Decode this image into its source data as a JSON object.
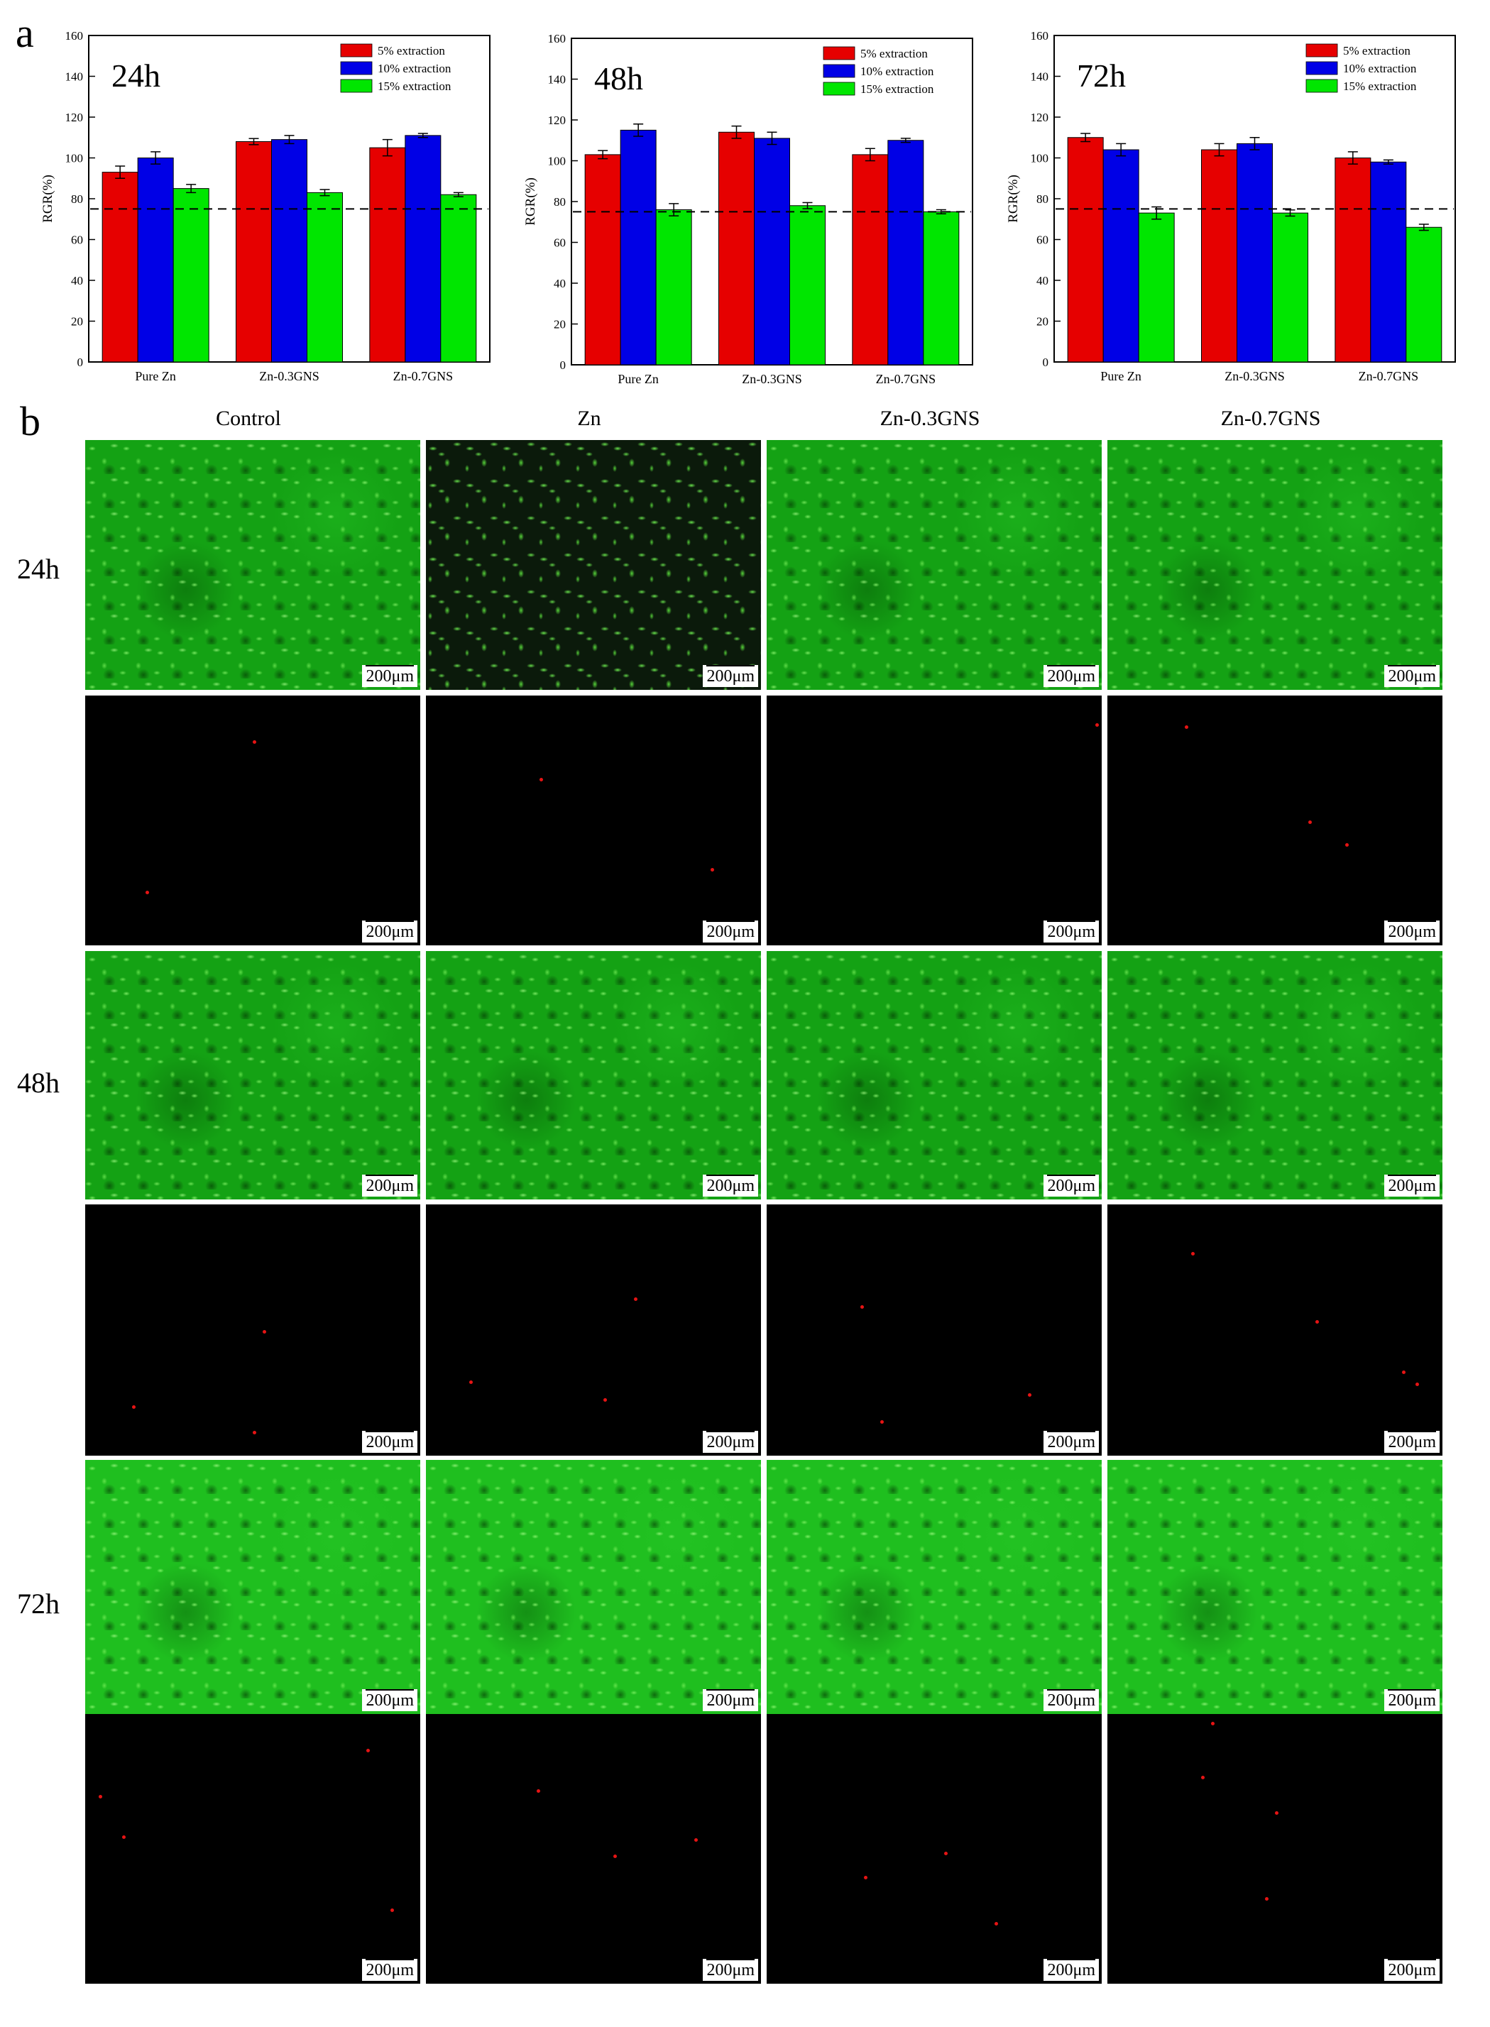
{
  "panel_labels": {
    "a": "a",
    "b": "b"
  },
  "chart_data": [
    {
      "type": "bar",
      "annotation": "24h",
      "categories": [
        "Pure Zn",
        "Zn-0.3GNS",
        "Zn-0.7GNS"
      ],
      "series": [
        {
          "name": "5%  extraction",
          "color": "#e60000",
          "values": [
            93,
            108,
            105
          ],
          "errors": [
            3,
            1.5,
            4
          ]
        },
        {
          "name": "10% extraction",
          "color": "#0000e6",
          "values": [
            100,
            109,
            111
          ],
          "errors": [
            3,
            2,
            1
          ]
        },
        {
          "name": "15% extraction",
          "color": "#00e600",
          "values": [
            85,
            83,
            82
          ],
          "errors": [
            2,
            1.5,
            1
          ]
        }
      ],
      "ylabel": "RGR(%)",
      "ylim": [
        0,
        160
      ],
      "yticks": [
        0,
        20,
        40,
        60,
        80,
        100,
        120,
        140,
        160
      ],
      "reference_line": 75
    },
    {
      "type": "bar",
      "annotation": "48h",
      "categories": [
        "Pure Zn",
        "Zn-0.3GNS",
        "Zn-0.7GNS"
      ],
      "series": [
        {
          "name": "5%  extraction",
          "color": "#e60000",
          "values": [
            103,
            114,
            103
          ],
          "errors": [
            2,
            3,
            3
          ]
        },
        {
          "name": "10% extraction",
          "color": "#0000e6",
          "values": [
            115,
            111,
            110
          ],
          "errors": [
            3,
            3,
            1
          ]
        },
        {
          "name": "15% extraction",
          "color": "#00e600",
          "values": [
            76,
            78,
            75
          ],
          "errors": [
            3,
            1.5,
            1
          ]
        }
      ],
      "ylabel": "RGR(%)",
      "ylim": [
        0,
        160
      ],
      "yticks": [
        0,
        20,
        40,
        60,
        80,
        100,
        120,
        140,
        160
      ],
      "reference_line": 75
    },
    {
      "type": "bar",
      "annotation": "72h",
      "categories": [
        "Pure Zn",
        "Zn-0.3GNS",
        "Zn-0.7GNS"
      ],
      "series": [
        {
          "name": "5%  extraction",
          "color": "#e60000",
          "values": [
            110,
            104,
            100
          ],
          "errors": [
            2,
            3,
            3
          ]
        },
        {
          "name": "10% extraction",
          "color": "#0000e6",
          "values": [
            104,
            107,
            98
          ],
          "errors": [
            3,
            3,
            1
          ]
        },
        {
          "name": "15% extraction",
          "color": "#00e600",
          "values": [
            73,
            73,
            66
          ],
          "errors": [
            3,
            1.5,
            1.5
          ]
        }
      ],
      "ylabel": "RGR(%)",
      "ylim": [
        0,
        160
      ],
      "yticks": [
        0,
        20,
        40,
        60,
        80,
        100,
        120,
        140,
        160
      ],
      "reference_line": 75
    }
  ],
  "micrographs": {
    "columns": [
      "Control",
      "Zn",
      "Zn-0.3GNS",
      "Zn-0.7GNS"
    ],
    "rows": [
      "24h",
      "48h",
      "72h"
    ],
    "scale_bar_label": "200μm"
  }
}
